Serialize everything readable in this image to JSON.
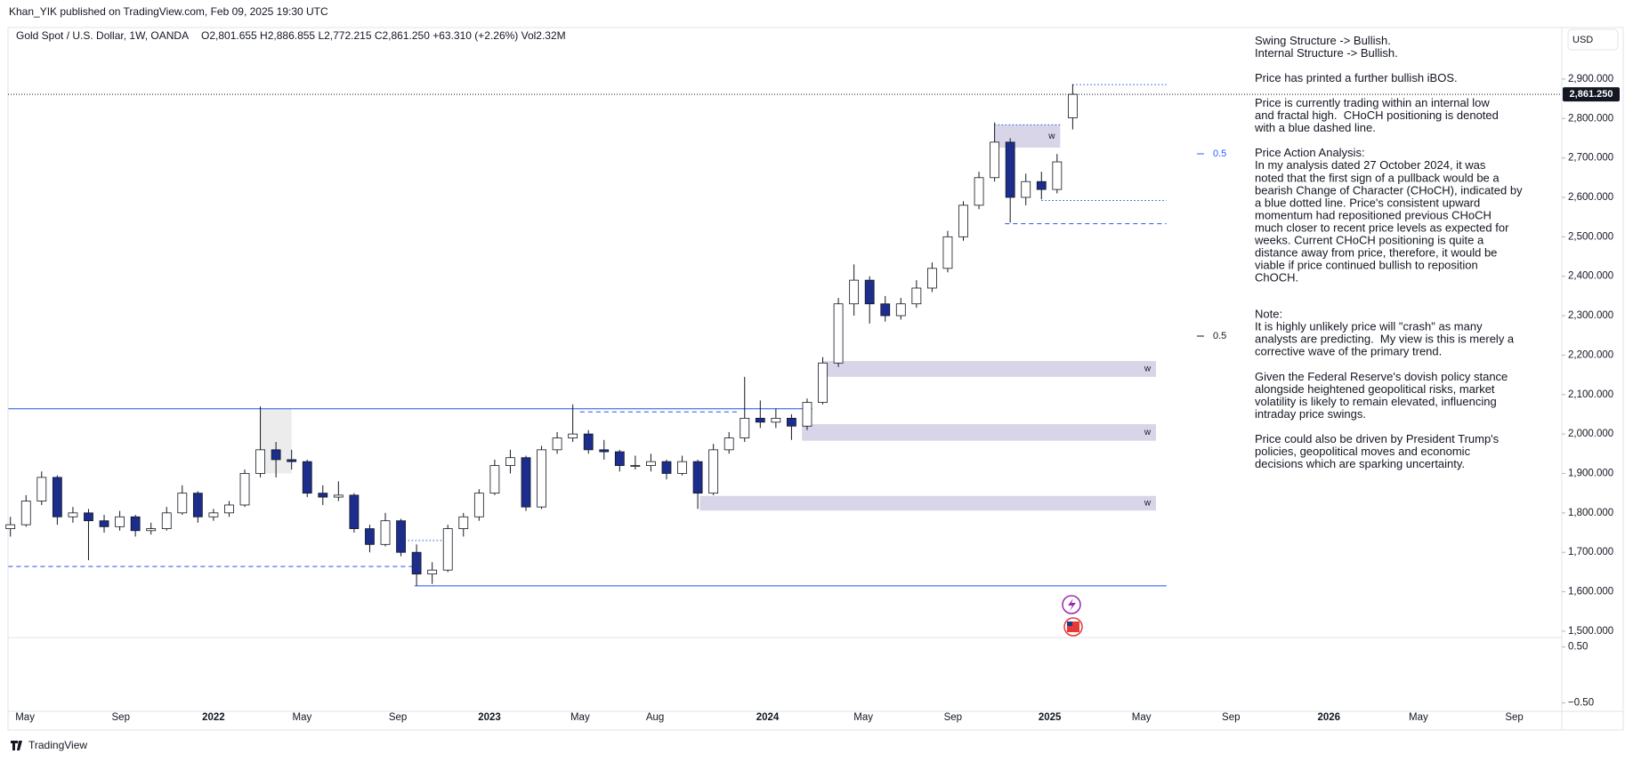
{
  "header": {
    "published": "Khan_YIK published on TradingView.com, Feb 09, 2025 19:30 UTC",
    "symbol": "Gold Spot / U.S. Dollar, 1W, OANDA",
    "ohlc_text": "O2,801.655 H2,886.855 L2,772.215 C2,861.250 +63.310 (+2.26%) Vol2.32M",
    "currency": "USD"
  },
  "chart_data": {
    "type": "candlestick",
    "candles": [
      [
        1760,
        1790,
        1740,
        1770
      ],
      [
        1770,
        1845,
        1765,
        1830
      ],
      [
        1830,
        1905,
        1820,
        1890
      ],
      [
        1890,
        1895,
        1770,
        1790
      ],
      [
        1790,
        1815,
        1775,
        1800
      ],
      [
        1800,
        1810,
        1680,
        1780
      ],
      [
        1780,
        1795,
        1750,
        1765
      ],
      [
        1765,
        1805,
        1755,
        1790
      ],
      [
        1790,
        1795,
        1740,
        1755
      ],
      [
        1755,
        1775,
        1745,
        1760
      ],
      [
        1760,
        1815,
        1755,
        1800
      ],
      [
        1800,
        1870,
        1795,
        1850
      ],
      [
        1850,
        1855,
        1775,
        1790
      ],
      [
        1790,
        1810,
        1780,
        1800
      ],
      [
        1800,
        1830,
        1790,
        1820
      ],
      [
        1820,
        1910,
        1815,
        1900
      ],
      [
        1900,
        2070,
        1890,
        1960
      ],
      [
        1960,
        1980,
        1890,
        1935
      ],
      [
        1935,
        1960,
        1910,
        1930
      ],
      [
        1930,
        1935,
        1840,
        1850
      ],
      [
        1850,
        1870,
        1820,
        1840
      ],
      [
        1840,
        1880,
        1830,
        1845
      ],
      [
        1845,
        1850,
        1750,
        1760
      ],
      [
        1760,
        1770,
        1700,
        1720
      ],
      [
        1720,
        1800,
        1715,
        1780
      ],
      [
        1780,
        1785,
        1690,
        1700
      ],
      [
        1700,
        1720,
        1615,
        1645
      ],
      [
        1645,
        1675,
        1620,
        1655
      ],
      [
        1655,
        1770,
        1650,
        1760
      ],
      [
        1760,
        1800,
        1740,
        1790
      ],
      [
        1790,
        1860,
        1780,
        1850
      ],
      [
        1850,
        1935,
        1845,
        1920
      ],
      [
        1920,
        1960,
        1900,
        1940
      ],
      [
        1940,
        1945,
        1805,
        1815
      ],
      [
        1815,
        1970,
        1810,
        1960
      ],
      [
        1960,
        2005,
        1950,
        1990
      ],
      [
        1990,
        2075,
        1980,
        2000
      ],
      [
        2000,
        2010,
        1950,
        1960
      ],
      [
        1960,
        1985,
        1935,
        1955
      ],
      [
        1955,
        1960,
        1905,
        1920
      ],
      [
        1920,
        1945,
        1910,
        1920
      ],
      [
        1920,
        1950,
        1905,
        1930
      ],
      [
        1930,
        1935,
        1885,
        1900
      ],
      [
        1900,
        1945,
        1895,
        1930
      ],
      [
        1930,
        1935,
        1810,
        1850
      ],
      [
        1850,
        1975,
        1845,
        1960
      ],
      [
        1960,
        2005,
        1950,
        1990
      ],
      [
        1990,
        2145,
        1980,
        2040
      ],
      [
        2040,
        2085,
        2015,
        2030
      ],
      [
        2030,
        2065,
        2015,
        2040
      ],
      [
        2040,
        2050,
        1985,
        2020
      ],
      [
        2020,
        2090,
        2010,
        2080
      ],
      [
        2080,
        2195,
        2075,
        2180
      ],
      [
        2180,
        2345,
        2170,
        2330
      ],
      [
        2330,
        2430,
        2300,
        2390
      ],
      [
        2390,
        2400,
        2280,
        2330
      ],
      [
        2330,
        2350,
        2285,
        2300
      ],
      [
        2300,
        2345,
        2290,
        2330
      ],
      [
        2330,
        2390,
        2320,
        2370
      ],
      [
        2370,
        2435,
        2360,
        2420
      ],
      [
        2420,
        2515,
        2410,
        2500
      ],
      [
        2500,
        2590,
        2490,
        2580
      ],
      [
        2580,
        2665,
        2570,
        2650
      ],
      [
        2650,
        2790,
        2640,
        2740
      ],
      [
        2740,
        2750,
        2536,
        2600
      ],
      [
        2600,
        2660,
        2580,
        2640
      ],
      [
        2640,
        2665,
        2595,
        2620
      ],
      [
        2620,
        2710,
        2610,
        2690
      ],
      [
        2801.655,
        2886.855,
        2772.215,
        2861.25
      ]
    ],
    "up_color": "#ffffff",
    "down_color": "#1c2d8c",
    "wick_color": "#131722",
    "last_price_label": "2,861.250",
    "x_labels": [
      "May",
      "Sep",
      "2022",
      "May",
      "Sep",
      "2023",
      "May",
      "Aug",
      "2024",
      "May",
      "Sep",
      "2025",
      "May",
      "Sep",
      "2026",
      "May",
      "Sep"
    ],
    "ylim": [
      1484,
      3026
    ],
    "yticks": [
      {
        "value": 1500,
        "label": "1,500.000"
      },
      {
        "value": 1600,
        "label": "1,600.000"
      },
      {
        "value": 1700,
        "label": "1,700.000"
      },
      {
        "value": 1800,
        "label": "1,800.000"
      },
      {
        "value": 1900,
        "label": "1,900.000"
      },
      {
        "value": 2000,
        "label": "2,000.000"
      },
      {
        "value": 2100,
        "label": "2,100.000"
      },
      {
        "value": 2200,
        "label": "2,200.000"
      },
      {
        "value": 2300,
        "label": "2,300.000"
      },
      {
        "value": 2400,
        "label": "2,400.000"
      },
      {
        "value": 2500,
        "label": "2,500.000"
      },
      {
        "value": 2600,
        "label": "2,600.000"
      },
      {
        "value": 2700,
        "label": "2,700.000"
      },
      {
        "value": 2800,
        "label": "2,800.000"
      },
      {
        "value": 2900,
        "label": "2,900.000"
      }
    ],
    "grid": false,
    "y2lim": [
      -0.65,
      0.67
    ],
    "y2ticks": [
      {
        "value": 0.5,
        "label": "0.50"
      },
      {
        "value": -0.5,
        "label": "−0.50"
      }
    ],
    "levels": [
      {
        "price": 2064,
        "style": "solid",
        "color": "#1e53e5"
      },
      {
        "price": 1615,
        "style": "solid",
        "color": "#1e53e5"
      },
      {
        "price": 1664,
        "style": "dashed",
        "color": "#1e53e5"
      },
      {
        "price": 2056,
        "style": "dashed",
        "color": "#1e53e5"
      },
      {
        "price": 2533,
        "style": "dashed",
        "color": "#1e53e5"
      },
      {
        "price": 2592,
        "style": "dotted",
        "color": "#1e53e5"
      },
      {
        "price": 2886,
        "style": "dotted",
        "color": "#1e53e5"
      },
      {
        "price": 2784,
        "style": "dotted",
        "color": "#1e53e5"
      },
      {
        "price": 1730,
        "style": "dotted",
        "color": "#1e53e5"
      }
    ],
    "zones": [
      {
        "low": 2145,
        "high": 2185,
        "label": "w",
        "color": "#d9d5e8"
      },
      {
        "low": 1983,
        "high": 2025,
        "label": "w",
        "color": "#d9d5e8"
      },
      {
        "low": 1806,
        "high": 1843,
        "label": "w",
        "color": "#d9d5e8"
      },
      {
        "low": 2726,
        "high": 2784,
        "label": "w",
        "color": "#d9d5e8"
      },
      {
        "low": 1900,
        "high": 2064,
        "color": "#ececec"
      }
    ],
    "fib_labels": [
      {
        "text": "0.5",
        "color": "#2962ff"
      },
      {
        "text": "0.5",
        "color": "#131722"
      }
    ]
  },
  "annotation": [
    [
      "Swing Structure -> Bullish.",
      "Internal Structure -> Bullish."
    ],
    [
      "Price has printed a further bullish iBOS."
    ],
    [
      "Price is currently trading within an internal low",
      "and fractal high.  CHoCH positioning is denoted",
      "with a blue dashed line."
    ],
    [
      "Price Action Analysis:",
      "In my analysis dated 27 October 2024, it was",
      "noted that the first sign of a pullback would be a",
      "bearish Change of Character (CHoCH), indicated by",
      "a blue dotted line. Price's consistent upward",
      "momentum had repositioned previous CHoCH",
      "much closer to recent price levels as expected for",
      "weeks. Current CHoCH positioning is quite a",
      "distance away from price, therefore, it would be",
      "viable if price continued bullish to reposition",
      "ChOCH."
    ],
    [
      "Note:",
      "It is highly unlikely price will \"crash\" as many",
      "analysts are predicting.  My view is this is merely a",
      "corrective wave of the primary trend."
    ],
    [
      "Given the Federal Reserve's dovish policy stance",
      "alongside heightened geopolitical risks, market",
      "volatility is likely to remain elevated, influencing",
      "intraday price swings."
    ],
    [
      "Price could also be driven by President Trump's",
      "policies, geopolitical moves and economic",
      "decisions which are sparking uncertainty."
    ]
  ],
  "footer": "TradingView"
}
